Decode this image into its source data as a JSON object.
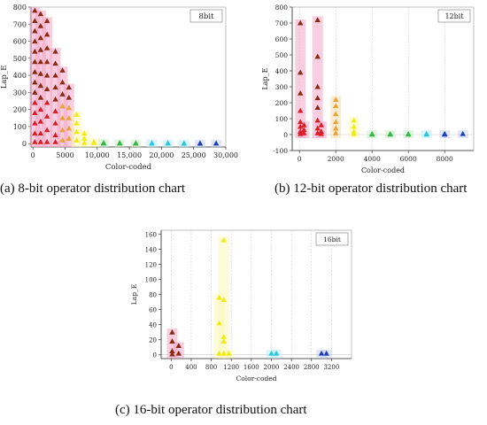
{
  "colors": {
    "red": "#d81f26",
    "dark_red": "#8b2a12",
    "pink": "#f3a6c6",
    "orange": "#e8a33a",
    "yellow": "#f2ea12",
    "green": "#39b54a",
    "cyan": "#29c6de",
    "blue": "#1f3fb8"
  },
  "chart_data": [
    {
      "id": "a",
      "type": "scatter",
      "legend": "8bit",
      "legend_position": "top-right",
      "xlabel": "Color-coded",
      "ylabel": "Lap_E",
      "xlim": [
        -300,
        30000
      ],
      "ylim": [
        -20,
        800
      ],
      "xticks": [
        0,
        5000,
        10000,
        15000,
        20000,
        25000,
        30000
      ],
      "xtick_labels": [
        "0",
        "5000",
        "10,000",
        "15,000",
        "20,000",
        "25,000",
        "30,000"
      ],
      "yticks": [
        0,
        100,
        200,
        300,
        400,
        500,
        600,
        700,
        800
      ],
      "ytick_labels": [
        "0",
        "100",
        "200",
        "300",
        "400",
        "500",
        "600",
        "700",
        "800"
      ],
      "grid": false,
      "clusters": [
        {
          "x": 300,
          "values": [
            780,
            720,
            660,
            600,
            540,
            480,
            420,
            360,
            300,
            240,
            180,
            120,
            60,
            10
          ]
        },
        {
          "x": 1200,
          "values": [
            760,
            690,
            620,
            550,
            480,
            410,
            340,
            270,
            200,
            130,
            60,
            10
          ]
        },
        {
          "x": 2200,
          "values": [
            720,
            640,
            560,
            480,
            400,
            320,
            240,
            160,
            80,
            10
          ]
        },
        {
          "x": 3500,
          "values": [
            540,
            470,
            400,
            330,
            260,
            190,
            120,
            50,
            10
          ]
        },
        {
          "x": 4600,
          "values": [
            430,
            360,
            290,
            220,
            150,
            80,
            20
          ]
        },
        {
          "x": 5600,
          "values": [
            330,
            270,
            210,
            150,
            90,
            30
          ]
        },
        {
          "x": 6800,
          "values": [
            170,
            120,
            70,
            20
          ]
        },
        {
          "x": 8000,
          "values": [
            60,
            30,
            5
          ]
        },
        {
          "x": 9500,
          "values": [
            10,
            5
          ]
        },
        {
          "x": 11000,
          "values": [
            5,
            2
          ]
        },
        {
          "x": 13500,
          "values": [
            4,
            2
          ]
        },
        {
          "x": 16000,
          "values": [
            3,
            2
          ]
        },
        {
          "x": 18500,
          "values": [
            3,
            2
          ]
        },
        {
          "x": 21000,
          "values": [
            3,
            2
          ]
        },
        {
          "x": 23500,
          "values": [
            2,
            1
          ]
        },
        {
          "x": 26000,
          "values": [
            2,
            1
          ]
        },
        {
          "x": 28500,
          "values": [
            2
          ]
        }
      ]
    },
    {
      "id": "b",
      "type": "scatter",
      "legend": "12bit",
      "legend_position": "top-right",
      "xlabel": "Color-coded",
      "ylabel": "Lap_E",
      "xlim": [
        -400,
        9600
      ],
      "ylim": [
        -100,
        800
      ],
      "xticks": [
        0,
        2000,
        4000,
        6000,
        8000
      ],
      "xtick_labels": [
        "0",
        "2000",
        "4000",
        "6000",
        "8000"
      ],
      "yticks": [
        -100,
        0,
        100,
        200,
        300,
        400,
        500,
        600,
        700,
        800
      ],
      "ytick_labels": [
        "-100",
        "0",
        "100",
        "200",
        "300",
        "400",
        "500",
        "600",
        "700",
        "800"
      ],
      "grid": true,
      "clusters": [
        {
          "x": 50,
          "values": [
            700,
            390,
            260,
            150,
            80,
            50,
            20,
            5
          ]
        },
        {
          "x": 250,
          "values": [
            60,
            30,
            10
          ]
        },
        {
          "x": 1000,
          "values": [
            720,
            490,
            300,
            230,
            170,
            90,
            40,
            10
          ]
        },
        {
          "x": 1200,
          "values": [
            60,
            20,
            5
          ]
        },
        {
          "x": 2000,
          "values": [
            220,
            180,
            130,
            80,
            40,
            10
          ]
        },
        {
          "x": 3000,
          "values": [
            90,
            50,
            20,
            5
          ]
        },
        {
          "x": 4000,
          "values": [
            5,
            2
          ]
        },
        {
          "x": 5000,
          "values": [
            5,
            2
          ]
        },
        {
          "x": 6000,
          "values": [
            5,
            2
          ]
        },
        {
          "x": 7000,
          "values": [
            5,
            2
          ]
        },
        {
          "x": 8000,
          "values": [
            5,
            2
          ]
        },
        {
          "x": 9000,
          "values": [
            5
          ]
        }
      ]
    },
    {
      "id": "c",
      "type": "scatter",
      "legend": "16bit",
      "legend_position": "top-right",
      "xlabel": "Color-coded",
      "ylabel": "Lap_E",
      "xlim": [
        -200,
        3600
      ],
      "ylim": [
        -5,
        165
      ],
      "xticks": [
        0,
        400,
        800,
        1200,
        1600,
        2000,
        2400,
        2800,
        3200
      ],
      "xtick_labels": [
        "0",
        "400",
        "800",
        "1200",
        "1600",
        "2000",
        "2400",
        "2800",
        "3200"
      ],
      "yticks": [
        0,
        20,
        40,
        60,
        80,
        100,
        120,
        140,
        160
      ],
      "ytick_labels": [
        "0",
        "20",
        "40",
        "60",
        "80",
        "100",
        "120",
        "140",
        "160"
      ],
      "grid": true,
      "clusters": [
        {
          "x": 20,
          "values": [
            30,
            18,
            5,
            1
          ]
        },
        {
          "x": 150,
          "values": [
            12,
            2
          ]
        },
        {
          "x": 960,
          "values": [
            76,
            42,
            2
          ]
        },
        {
          "x": 1050,
          "values": [
            152,
            73,
            24,
            18,
            2
          ]
        },
        {
          "x": 1150,
          "values": [
            2
          ]
        },
        {
          "x": 2000,
          "values": [
            2
          ]
        },
        {
          "x": 2100,
          "values": [
            2
          ]
        },
        {
          "x": 3000,
          "values": [
            2
          ]
        },
        {
          "x": 3100,
          "values": [
            2
          ]
        }
      ]
    }
  ],
  "captions": {
    "a": "(a) 8-bit operator distribution chart",
    "b": "(b) 12-bit operator distribution chart",
    "c": "(c) 16-bit operator distribution chart"
  }
}
